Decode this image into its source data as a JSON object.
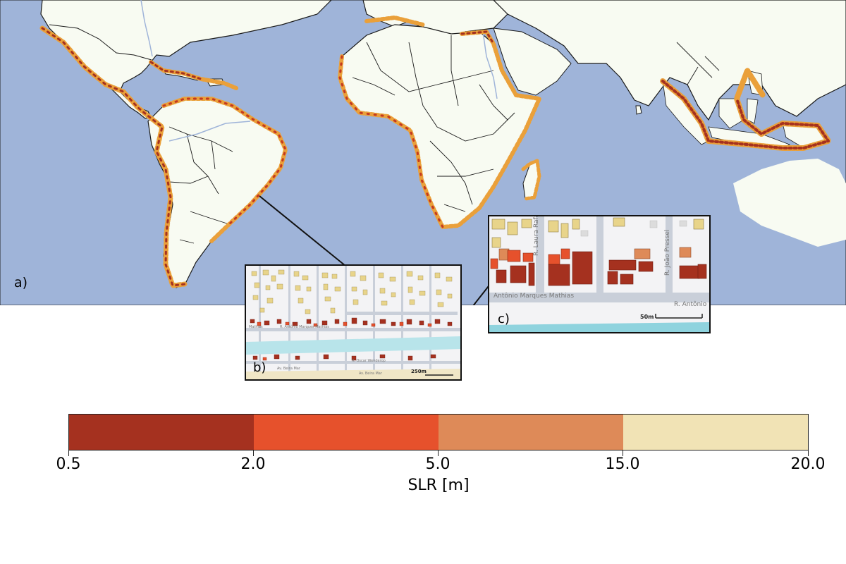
{
  "figure": {
    "panel_a_label": "a)",
    "panel_b_label": "b)",
    "panel_c_label": "c)"
  },
  "colors": {
    "ocean": "#9fb4d9",
    "land": "#f8fbf2",
    "border": "#1a1a1a",
    "river": "#9fb4d9"
  },
  "inset_b": {
    "streets": [
      "R. Antônio Marques Mathias",
      "R. Oscar Wenderop",
      "Av. Beira Mar",
      "Av. Beira Mar",
      "Mathias"
    ],
    "scalebar": "250m"
  },
  "inset_c": {
    "streets": [
      "R. Laura Rafanelli",
      "R. João Pressel",
      "Antônio Marques Mathias",
      "R. Antônio"
    ],
    "scalebar": "50m"
  },
  "colorbar": {
    "title": "SLR [m]",
    "ticks": [
      "0.5",
      "2.0",
      "5.0",
      "15.0",
      "20.0"
    ],
    "bins": [
      {
        "range": "0.5–2.0",
        "color": "#a5311f"
      },
      {
        "range": "2.0–5.0",
        "color": "#e6512c"
      },
      {
        "range": "5.0–15.0",
        "color": "#de8a58"
      },
      {
        "range": "15.0–20.0",
        "color": "#f1e3b5"
      }
    ]
  }
}
